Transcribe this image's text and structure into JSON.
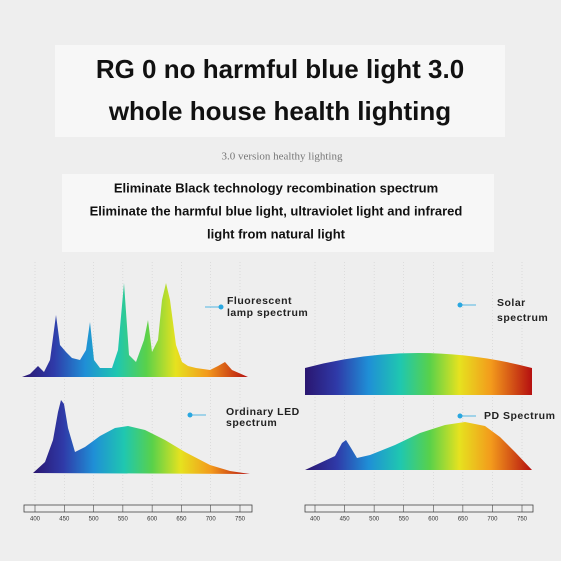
{
  "header": {
    "title_lines": [
      "RG 0 no harmful blue light 3.0",
      "whole house health lighting"
    ],
    "subtitle": "3.0 version healthy lighting"
  },
  "description": {
    "lines": [
      "Eliminate Black technology recombination spectrum",
      "Eliminate the harmful blue light, ultraviolet light and infrared",
      "light from natural light"
    ]
  },
  "panels": [
    {
      "label_lines": [
        "Fluorescent",
        "lamp spectrum"
      ]
    },
    {
      "label_lines": [
        "Solar",
        "spectrum"
      ]
    },
    {
      "label_lines": [
        "Ordinary LED",
        "spectrum"
      ]
    },
    {
      "label_lines": [
        "PD Spectrum"
      ]
    }
  ],
  "axes": [
    {
      "ticks": [
        400,
        450,
        500,
        550,
        600,
        650,
        700,
        750
      ]
    },
    {
      "ticks": [
        400,
        450,
        500,
        550,
        600,
        650,
        700,
        750
      ]
    }
  ]
}
